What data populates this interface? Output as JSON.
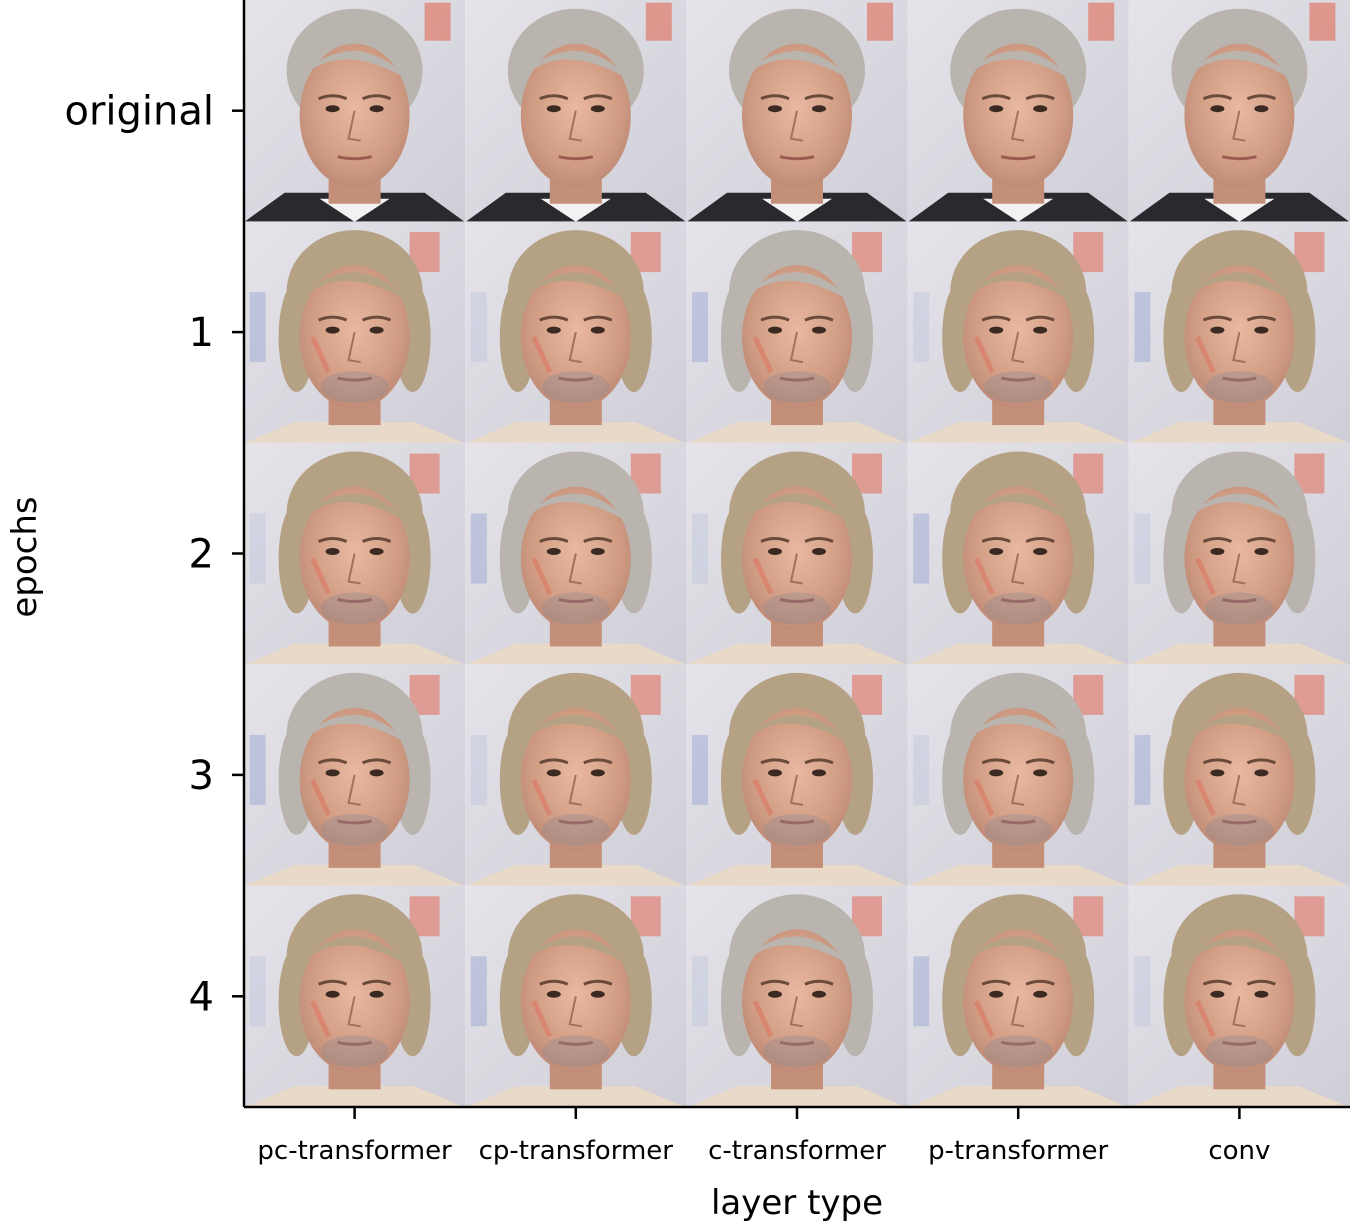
{
  "figure": {
    "xlabel": "layer type",
    "ylabel": "epochs",
    "columns": [
      "pc-transformer",
      "cp-transformer",
      "c-transformer",
      "p-transformer",
      "conv"
    ],
    "rows": [
      "original",
      "1",
      "2",
      "3",
      "4"
    ],
    "grid_cells": [
      {
        "row": "original",
        "column": "pc-transformer",
        "content": "face-photo-original"
      },
      {
        "row": "original",
        "column": "cp-transformer",
        "content": "face-photo-original"
      },
      {
        "row": "original",
        "column": "c-transformer",
        "content": "face-photo-original"
      },
      {
        "row": "original",
        "column": "p-transformer",
        "content": "face-photo-original"
      },
      {
        "row": "original",
        "column": "conv",
        "content": "face-photo-original"
      }
    ],
    "colors": {
      "background": "#ffffff",
      "axis": "#000000",
      "skin": "#d9a58f",
      "hair_grey": "#b9b4ad",
      "hair_blond": "#b5a285",
      "backdrop": "#dcdbe3",
      "artifact_red": "#e06a55",
      "artifact_blue": "#7a92c8",
      "suit": "#2a2a2e"
    }
  }
}
